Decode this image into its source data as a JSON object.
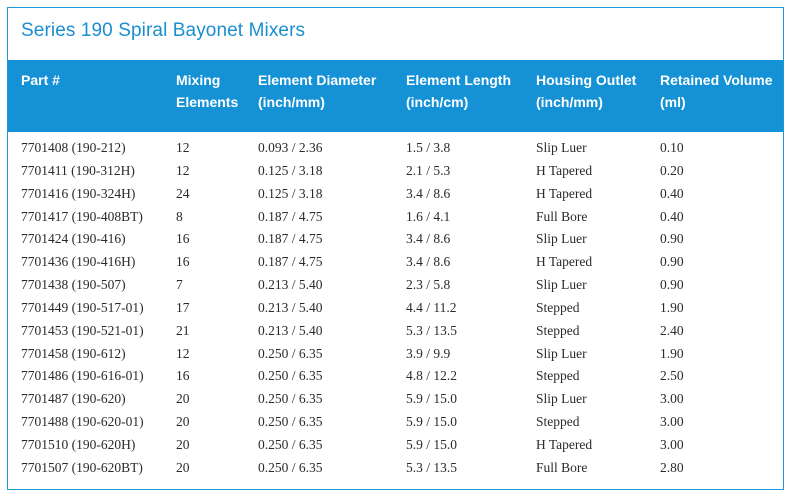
{
  "title": "Series 190 Spiral Bayonet Mixers",
  "columns": [
    "Part #",
    "Mixing\nElements",
    "Element Diameter\n(inch/mm)",
    "Element Length\n(inch/cm)",
    "Housing Outlet\n(inch/mm)",
    "Retained Volume\n(ml)"
  ],
  "rows": [
    [
      "7701408 (190-212)",
      "12",
      "0.093 / 2.36",
      "1.5 / 3.8",
      "Slip Luer",
      "0.10"
    ],
    [
      "7701411 (190-312H)",
      "12",
      "0.125 / 3.18",
      "2.1 / 5.3",
      "H Tapered",
      "0.20"
    ],
    [
      "7701416 (190-324H)",
      "24",
      "0.125 / 3.18",
      "3.4 / 8.6",
      "H Tapered",
      "0.40"
    ],
    [
      "7701417 (190-408BT)",
      "8",
      "0.187 / 4.75",
      "1.6 / 4.1",
      "Full Bore",
      "0.40"
    ],
    [
      "7701424 (190-416)",
      "16",
      "0.187 / 4.75",
      "3.4 / 8.6",
      "Slip Luer",
      "0.90"
    ],
    [
      "7701436 (190-416H)",
      "16",
      "0.187 / 4.75",
      "3.4 / 8.6",
      "H Tapered",
      "0.90"
    ],
    [
      "7701438 (190-507)",
      "7",
      "0.213 / 5.40",
      "2.3 / 5.8",
      "Slip Luer",
      "0.90"
    ],
    [
      "7701449 (190-517-01)",
      "17",
      "0.213 / 5.40",
      "4.4 / 11.2",
      "Stepped",
      "1.90"
    ],
    [
      "7701453 (190-521-01)",
      "21",
      "0.213 / 5.40",
      "5.3 / 13.5",
      "Stepped",
      "2.40"
    ],
    [
      "7701458 (190-612)",
      "12",
      "0.250 / 6.35",
      "3.9 / 9.9",
      "Slip Luer",
      "1.90"
    ],
    [
      "7701486 (190-616-01)",
      "16",
      "0.250 / 6.35",
      "4.8 / 12.2",
      "Stepped",
      "2.50"
    ],
    [
      "7701487 (190-620)",
      "20",
      "0.250 / 6.35",
      "5.9 / 15.0",
      "Slip Luer",
      "3.00"
    ],
    [
      "7701488 (190-620-01)",
      "20",
      "0.250 / 6.35",
      "5.9 / 15.0",
      "Stepped",
      "3.00"
    ],
    [
      "7701510 (190-620H)",
      "20",
      "0.250 / 6.35",
      "5.9 / 15.0",
      "H Tapered",
      "3.00"
    ],
    [
      "7701507 (190-620BT)",
      "20",
      "0.250 / 6.35",
      "5.3 / 13.5",
      "Full Bore",
      "2.80"
    ]
  ]
}
